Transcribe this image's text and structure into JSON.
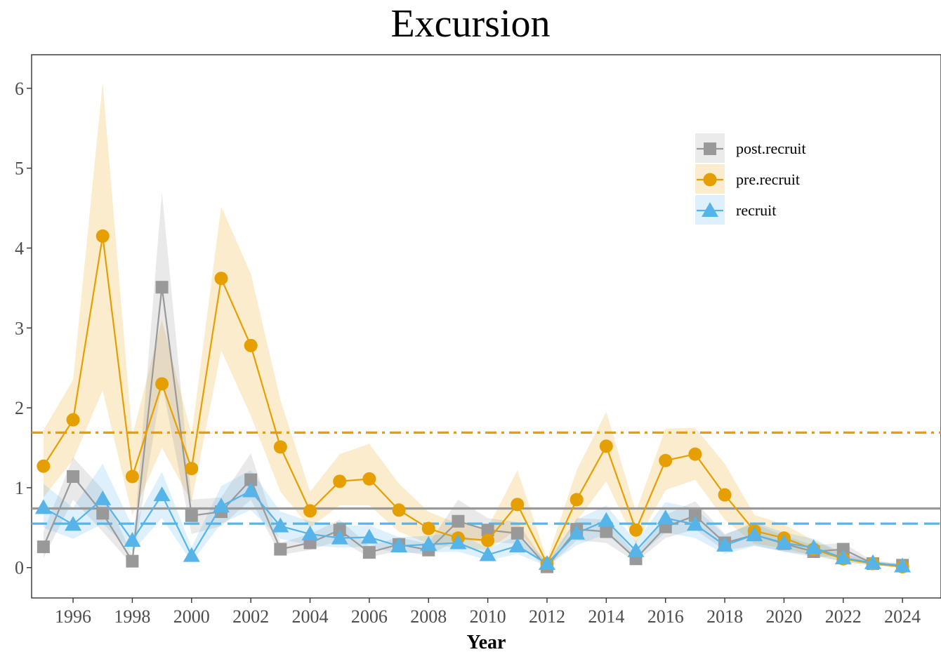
{
  "chart_data": {
    "type": "line",
    "title": "Excursion",
    "xlabel": "Year",
    "ylabel": "",
    "xlim": [
      1994.6,
      2025.3
    ],
    "ylim": [
      -0.38,
      6.42
    ],
    "x_ticks": [
      1996,
      1998,
      2000,
      2002,
      2004,
      2006,
      2008,
      2010,
      2012,
      2014,
      2016,
      2018,
      2020,
      2022,
      2024
    ],
    "y_ticks": [
      0,
      1,
      2,
      3,
      4,
      5,
      6
    ],
    "grid": false,
    "legend_position": "top-right",
    "colors": {
      "post.recruit": "#999999",
      "pre.recruit": "#E69F00",
      "recruit": "#56B4E9"
    },
    "x": [
      1995,
      1996,
      1997,
      1998,
      1999,
      2000,
      2001,
      2002,
      2003,
      2004,
      2005,
      2006,
      2007,
      2008,
      2009,
      2010,
      2011,
      2012,
      2013,
      2014,
      2015,
      2016,
      2017,
      2018,
      2019,
      2020,
      2021,
      2022,
      2023,
      2024
    ],
    "series": [
      {
        "name": "post.recruit",
        "marker": "square",
        "values": [
          0.26,
          1.14,
          0.68,
          0.08,
          3.51,
          0.65,
          0.7,
          1.1,
          0.23,
          0.31,
          0.47,
          0.19,
          0.29,
          0.22,
          0.58,
          0.47,
          0.43,
          0.01,
          0.48,
          0.45,
          0.11,
          0.51,
          0.65,
          0.31,
          0.41,
          0.3,
          0.2,
          0.23,
          0.05,
          0.03
        ],
        "lower": [
          0.12,
          0.85,
          0.45,
          0.03,
          2.3,
          0.42,
          0.52,
          0.85,
          0.16,
          0.22,
          0.34,
          0.13,
          0.21,
          0.15,
          0.35,
          0.32,
          0.3,
          0.0,
          0.34,
          0.31,
          0.07,
          0.37,
          0.48,
          0.21,
          0.28,
          0.2,
          0.13,
          0.15,
          0.03,
          0.02
        ],
        "upper": [
          0.45,
          1.38,
          0.98,
          0.15,
          4.7,
          0.85,
          0.88,
          1.43,
          0.31,
          0.42,
          0.6,
          0.27,
          0.38,
          0.3,
          0.85,
          0.62,
          0.57,
          0.03,
          0.62,
          0.6,
          0.16,
          0.66,
          0.83,
          0.42,
          0.55,
          0.4,
          0.28,
          0.31,
          0.08,
          0.05
        ]
      },
      {
        "name": "pre.recruit",
        "marker": "circle",
        "values": [
          1.27,
          1.85,
          4.15,
          1.14,
          2.3,
          1.24,
          3.62,
          2.78,
          1.51,
          0.71,
          1.08,
          1.11,
          0.72,
          0.49,
          0.37,
          0.34,
          0.79,
          0.05,
          0.85,
          1.52,
          0.47,
          1.34,
          1.42,
          0.91,
          0.46,
          0.37,
          0.23,
          0.11,
          0.05,
          0.01
        ],
        "lower": [
          0.88,
          1.35,
          2.22,
          0.65,
          1.5,
          0.82,
          2.72,
          1.9,
          0.95,
          0.5,
          0.78,
          0.78,
          0.45,
          0.3,
          0.24,
          0.22,
          0.48,
          0.02,
          0.58,
          1.08,
          0.3,
          0.97,
          1.1,
          0.6,
          0.3,
          0.24,
          0.15,
          0.07,
          0.03,
          0.0
        ],
        "upper": [
          1.72,
          2.35,
          6.07,
          1.65,
          3.1,
          1.66,
          4.52,
          3.68,
          2.1,
          0.95,
          1.42,
          1.55,
          1.05,
          0.7,
          0.55,
          0.5,
          1.22,
          0.1,
          1.22,
          1.95,
          0.7,
          1.74,
          1.75,
          1.3,
          0.66,
          0.54,
          0.34,
          0.17,
          0.08,
          0.03
        ]
      },
      {
        "name": "recruit",
        "marker": "triangle",
        "values": [
          0.75,
          0.54,
          0.86,
          0.34,
          0.91,
          0.15,
          0.77,
          0.96,
          0.52,
          0.42,
          0.37,
          0.38,
          0.27,
          0.29,
          0.31,
          0.16,
          0.27,
          0.05,
          0.43,
          0.59,
          0.21,
          0.62,
          0.54,
          0.28,
          0.41,
          0.31,
          0.25,
          0.12,
          0.06,
          0.02
        ],
        "lower": [
          0.5,
          0.36,
          0.55,
          0.2,
          0.62,
          0.07,
          0.55,
          0.72,
          0.36,
          0.28,
          0.25,
          0.26,
          0.18,
          0.19,
          0.2,
          0.09,
          0.17,
          0.02,
          0.28,
          0.42,
          0.12,
          0.44,
          0.37,
          0.17,
          0.27,
          0.2,
          0.16,
          0.07,
          0.03,
          0.01
        ],
        "upper": [
          1.05,
          0.75,
          1.3,
          0.52,
          1.2,
          0.25,
          1.02,
          1.22,
          0.7,
          0.58,
          0.52,
          0.53,
          0.38,
          0.4,
          0.44,
          0.24,
          0.4,
          0.09,
          0.6,
          0.78,
          0.33,
          0.82,
          0.74,
          0.41,
          0.57,
          0.44,
          0.36,
          0.18,
          0.09,
          0.04
        ]
      }
    ],
    "reference_lines": [
      {
        "series": "pre.recruit",
        "y": 1.69,
        "style": "dotdash"
      },
      {
        "series": "post.recruit",
        "y": 0.74,
        "style": "solid"
      },
      {
        "series": "recruit",
        "y": 0.55,
        "style": "dashed"
      }
    ]
  }
}
